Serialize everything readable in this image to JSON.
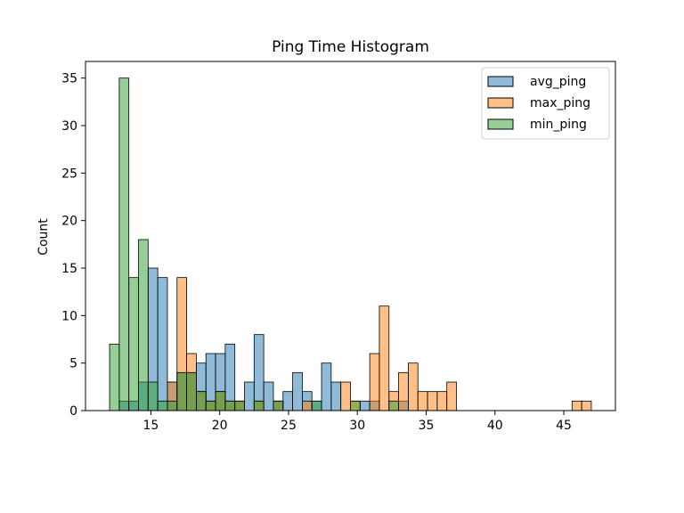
{
  "chart_data": {
    "type": "bar",
    "subtype": "overlaid-histogram",
    "title": "Ping Time Histogram",
    "xlabel": "",
    "ylabel": "Count",
    "xlim": [
      10.25,
      48.75
    ],
    "ylim": [
      0,
      36.75
    ],
    "xticks": [
      15,
      20,
      25,
      30,
      35,
      40,
      45
    ],
    "yticks": [
      0,
      5,
      10,
      15,
      20,
      25,
      30,
      35
    ],
    "bin_edges": [
      12,
      12.7,
      13.4,
      14.1,
      14.8,
      15.5,
      16.2,
      16.9,
      17.6,
      18.3,
      19.0,
      19.7,
      20.4,
      21.1,
      21.8,
      22.5,
      23.2,
      23.9,
      24.6,
      25.3,
      26.0,
      26.7,
      27.4,
      28.1,
      28.8,
      29.5,
      30.2,
      30.9,
      31.6,
      32.3,
      33.0,
      33.7,
      34.4,
      35.1,
      35.8,
      36.5,
      37.2,
      37.9,
      38.6,
      39.3,
      40.0,
      40.7,
      41.4,
      42.1,
      42.8,
      43.5,
      44.2,
      44.9,
      45.6,
      46.3,
      47.0
    ],
    "grid": false,
    "legend_position": "top-right",
    "series": [
      {
        "name": "avg_ping",
        "color": "#1f77b4",
        "values": [
          0,
          1,
          1,
          3,
          15,
          14,
          3,
          4,
          4,
          5,
          6,
          6,
          7,
          1,
          3,
          8,
          3,
          1,
          2,
          4,
          2,
          1,
          5,
          3,
          0,
          0,
          1,
          1,
          0,
          0,
          1,
          0,
          0,
          0,
          0,
          0,
          0,
          0,
          0,
          0,
          0,
          0,
          0,
          0,
          0,
          0,
          0,
          0,
          0,
          0
        ]
      },
      {
        "name": "max_ping",
        "color": "#ff7f0e",
        "values": [
          0,
          0,
          0,
          0,
          0,
          0,
          3,
          14,
          6,
          2,
          1,
          2,
          1,
          1,
          0,
          1,
          0,
          1,
          0,
          0,
          1,
          0,
          0,
          0,
          3,
          1,
          0,
          6,
          11,
          2,
          4,
          5,
          2,
          2,
          2,
          3,
          0,
          0,
          0,
          0,
          0,
          0,
          0,
          0,
          0,
          0,
          0,
          0,
          1,
          1
        ]
      },
      {
        "name": "min_ping",
        "color": "#2ca02c",
        "values": [
          7,
          35,
          14,
          18,
          3,
          1,
          1,
          4,
          4,
          2,
          1,
          2,
          1,
          1,
          0,
          1,
          0,
          1,
          0,
          0,
          0,
          1,
          0,
          0,
          0,
          1,
          0,
          0,
          0,
          1,
          0,
          0,
          0,
          0,
          0,
          0,
          0,
          0,
          0,
          0,
          0,
          0,
          0,
          0,
          0,
          0,
          0,
          0,
          0,
          0
        ]
      }
    ]
  }
}
